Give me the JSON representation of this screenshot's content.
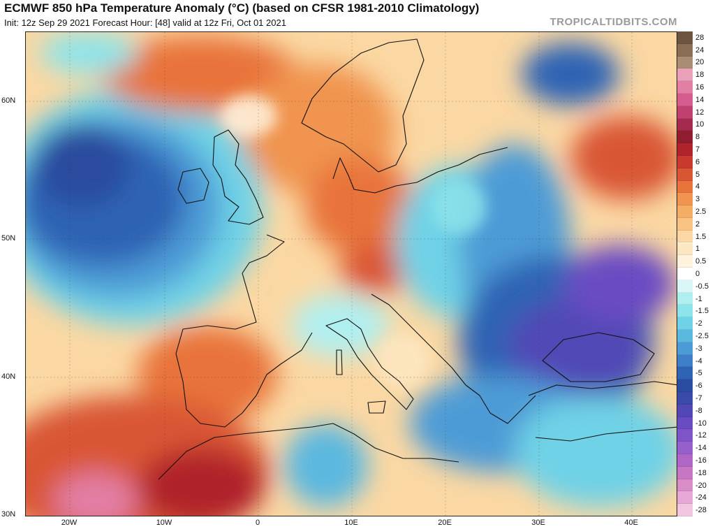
{
  "header": {
    "title": "ECMWF 850 hPa Temperature Anomaly (°C) (based on CFSR 1981-2010 Climatology)",
    "subtitle": "Init: 12z Sep 29 2021   Forecast Hour: [48]   valid at 12z Fri, Oct 01 2021",
    "brand": "TROPICALTIDBITS.COM"
  },
  "map": {
    "lat_ticks": [
      "60N",
      "50N",
      "40N",
      "30N"
    ],
    "lon_ticks": [
      "20W",
      "10W",
      "0",
      "10E",
      "20E",
      "30E",
      "40E"
    ]
  },
  "colorbar": {
    "labels": [
      "28",
      "24",
      "20",
      "18",
      "16",
      "14",
      "12",
      "10",
      "8",
      "7",
      "6",
      "5",
      "4",
      "3",
      "2.5",
      "2",
      "1.5",
      "1",
      "0.5",
      "0",
      "-0.5",
      "-1",
      "-1.5",
      "-2",
      "-2.5",
      "-3",
      "-4",
      "-5",
      "-6",
      "-7",
      "-8",
      "-10",
      "-12",
      "-14",
      "-16",
      "-18",
      "-20",
      "-24",
      "-28"
    ],
    "colors": [
      "#6b5540",
      "#8a6f55",
      "#a98d75",
      "#e9a0b8",
      "#e27fa4",
      "#d45c8e",
      "#c04070",
      "#a52a50",
      "#901c30",
      "#b0232a",
      "#c83a2d",
      "#d95635",
      "#e8733b",
      "#f09450",
      "#f5ac65",
      "#f9c383",
      "#fbd8a3",
      "#fde7c2",
      "#fff3de",
      "#ffffff",
      "#d9f7f7",
      "#b0eff0",
      "#8de4ea",
      "#6fd2e6",
      "#5bb8df",
      "#4d9bd6",
      "#3f7fc8",
      "#2f63b4",
      "#2a4c9e",
      "#3a4aa8",
      "#5148b5",
      "#6a4cc2",
      "#7d55c9",
      "#9560c9",
      "#b066c6",
      "#c776c4",
      "#d98dc8",
      "#e6a8d4",
      "#f0c6e0"
    ]
  }
}
